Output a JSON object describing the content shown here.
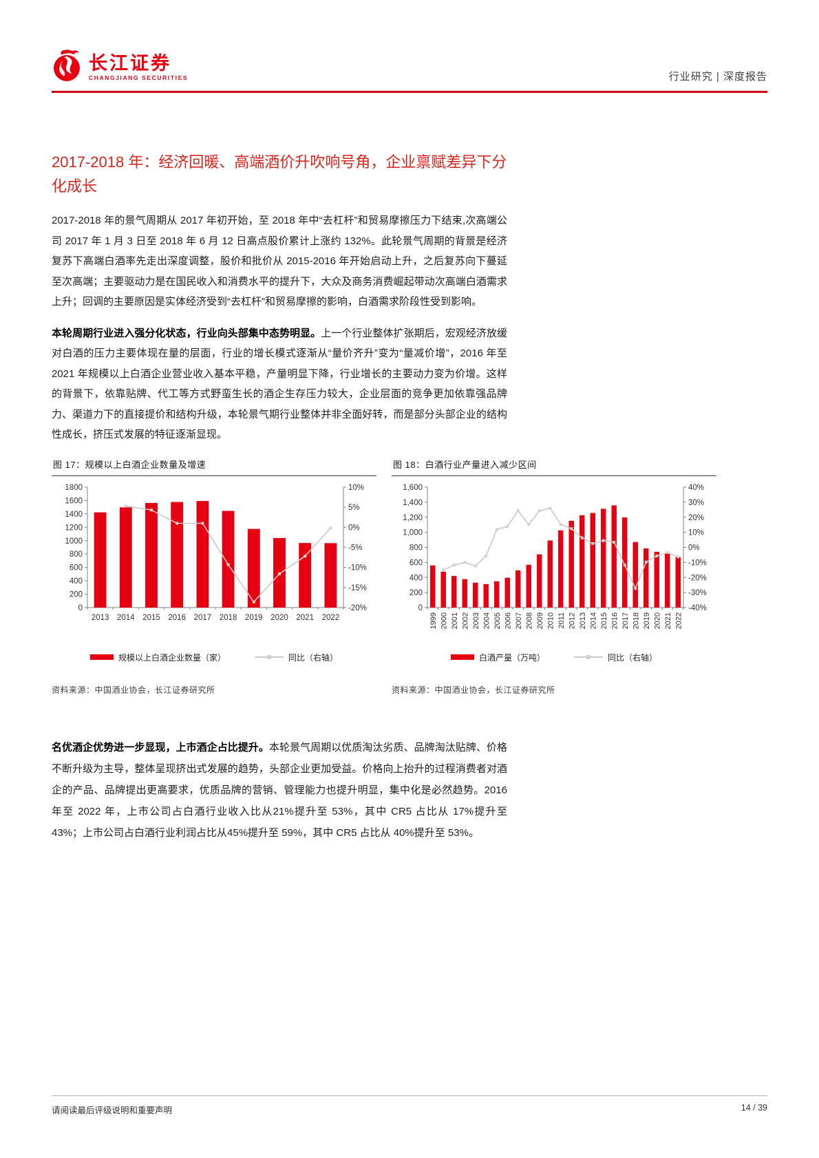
{
  "header": {
    "logo_cn": "长江证券",
    "logo_en": "CHANGJIANG SECURITIES",
    "doc_type": "行业研究 | 深度报告"
  },
  "section": {
    "title": "2017-2018 年：经济回暖、高端酒价升吹响号角，企业禀赋差异下分化成长"
  },
  "paragraphs": {
    "p1": "2017-2018 年的景气周期从 2017 年初开始，至 2018 年中“去杠杆”和贸易摩擦压力下结束,次高端公司 2017 年 1 月 3 日至 2018 年 6 月 12 日高点股价累计上涨约 132%。此轮景气周期的背景是经济复苏下高端白酒率先走出深度调整，股价和批价从 2015-2016 年开始启动上升，之后复苏向下蔓延至次高端；主要驱动力是在国民收入和消费水平的提升下，大众及商务消费崛起带动次高端白酒需求上升；回调的主要原因是实体经济受到“去杠杆”和贸易摩擦的影响，白酒需求阶段性受到影响。",
    "p2_bold": "本轮周期行业进入强分化状态，行业向头部集中态势明显。",
    "p2_rest": "上一个行业整体扩张期后，宏观经济放缓对白酒的压力主要体现在量的层面，行业的增长模式逐渐从“量价齐升”变为“量减价增”，2016 年至 2021 年规模以上白酒企业营业收入基本平稳，产量明显下降，行业增长的主要动力变为价增。这样的背景下，依靠贴牌、代工等方式野蛮生长的酒企生存压力较大，企业层面的竞争更加依靠强品牌力、渠道力下的直接提价和结构升级，本轮景气期行业整体并非全面好转，而是部分头部企业的结构性成长，挤压式发展的特征逐渐显现。",
    "p3_bold": "名优酒企优势进一步显现，上市酒企占比提升。",
    "p3_rest": "本轮景气周期以优质淘汰劣质、品牌淘汰贴牌、价格不断升级为主导，整体呈现挤出式发展的趋势，头部企业更加受益。价格向上抬升的过程消费者对酒企的产品、品牌提出更高要求，优质品牌的营销、管理能力也提升明显，集中化是必然趋势。2016 年至 2022 年，上市公司占白酒行业收入比从21%提升至 53%，其中 CR5 占比从 17%提升至 43%；上市公司占白酒行业利润占比从45%提升至 59%，其中 CR5 占比从 40%提升至 53%。"
  },
  "figures": [
    {
      "caption": "图 17：规模以上白酒企业数量及增速",
      "legend": [
        {
          "label": "规模以上白酒企业数量（家）"
        },
        {
          "label": "同比（右轴）"
        }
      ],
      "source": "资料来源：中国酒业协会，长江证券研究所"
    },
    {
      "caption": "图 18：白酒行业产量进入减少区间",
      "legend": [
        {
          "label": "白酒产量（万吨）"
        },
        {
          "label": "同比（右轴）"
        }
      ],
      "source": "资料来源：中国酒业协会，长江证券研究所"
    }
  ],
  "chart_data": [
    {
      "type": "bar",
      "title": "规模以上白酒企业数量及增速",
      "categories": [
        "2013",
        "2014",
        "2015",
        "2016",
        "2017",
        "2018",
        "2019",
        "2020",
        "2021",
        "2022"
      ],
      "series": [
        {
          "name": "规模以上白酒企业数量（家）",
          "type": "bar",
          "axis": "left",
          "values": [
            1423,
            1498,
            1563,
            1578,
            1593,
            1445,
            1176,
            1040,
            965,
            963
          ]
        },
        {
          "name": "同比（右轴）",
          "type": "line",
          "axis": "right",
          "values": [
            null,
            5.3,
            4.3,
            1.0,
            1.0,
            -9.3,
            -18.6,
            -11.6,
            -7.2,
            -0.2
          ]
        }
      ],
      "left_axis": {
        "min": 0,
        "max": 1800,
        "tick_labels": [
          "0",
          "200",
          "400",
          "600",
          "800",
          "1000",
          "1200",
          "1400",
          "1600",
          "1800"
        ]
      },
      "right_axis": {
        "min": -20,
        "max": 10,
        "tick_labels": [
          "-20%",
          "-15%",
          "-10%",
          "-5%",
          "0%",
          "5%",
          "10%"
        ]
      },
      "x_labels_rotated": false,
      "grid": false,
      "legend_position": "bottom"
    },
    {
      "type": "bar",
      "title": "白酒行业产量进入减少区间",
      "categories": [
        "1999",
        "2000",
        "2001",
        "2002",
        "2003",
        "2004",
        "2005",
        "2006",
        "2007",
        "2008",
        "2009",
        "2010",
        "2011",
        "2012",
        "2013",
        "2014",
        "2015",
        "2016",
        "2017",
        "2018",
        "2019",
        "2020",
        "2021",
        "2022"
      ],
      "series": [
        {
          "name": "白酒产量（万吨）",
          "type": "bar",
          "axis": "left",
          "values": [
            560,
            476,
            420,
            378,
            331,
            312,
            349,
            397,
            494,
            569,
            707,
            891,
            1026,
            1153,
            1226,
            1257,
            1313,
            1358,
            1198,
            871,
            786,
            741,
            716,
            671
          ]
        },
        {
          "name": "同比（右轴）",
          "type": "line",
          "axis": "right",
          "values": [
            null,
            -15.0,
            -11.8,
            -10.0,
            -12.4,
            -5.7,
            11.9,
            13.8,
            24.4,
            15.2,
            24.3,
            26.0,
            15.2,
            12.4,
            6.3,
            2.5,
            4.5,
            3.4,
            -11.8,
            -27.3,
            -9.8,
            -5.7,
            -3.4,
            -6.3
          ]
        }
      ],
      "left_axis": {
        "min": 0,
        "max": 1600,
        "tick_labels": [
          "0",
          "200",
          "400",
          "600",
          "800",
          "1,000",
          "1,200",
          "1,400",
          "1,600"
        ]
      },
      "right_axis": {
        "min": -40,
        "max": 40,
        "tick_labels": [
          "-40%",
          "-30%",
          "-20%",
          "-10%",
          "0%",
          "10%",
          "20%",
          "30%",
          "40%"
        ]
      },
      "x_labels_rotated": true,
      "grid": false,
      "legend_position": "bottom"
    }
  ],
  "footer": {
    "disclaimer": "请阅读最后评级说明和重要声明",
    "page": "14 / 39"
  },
  "colors": {
    "accent_red": "#e60012",
    "rule_red": "#d0000f",
    "title_red": "#d9251d",
    "bar_red": "#e60012",
    "line_gray": "#c9c9c9",
    "marker_gray": "#d2d0c9",
    "axis_gray": "#808080"
  }
}
